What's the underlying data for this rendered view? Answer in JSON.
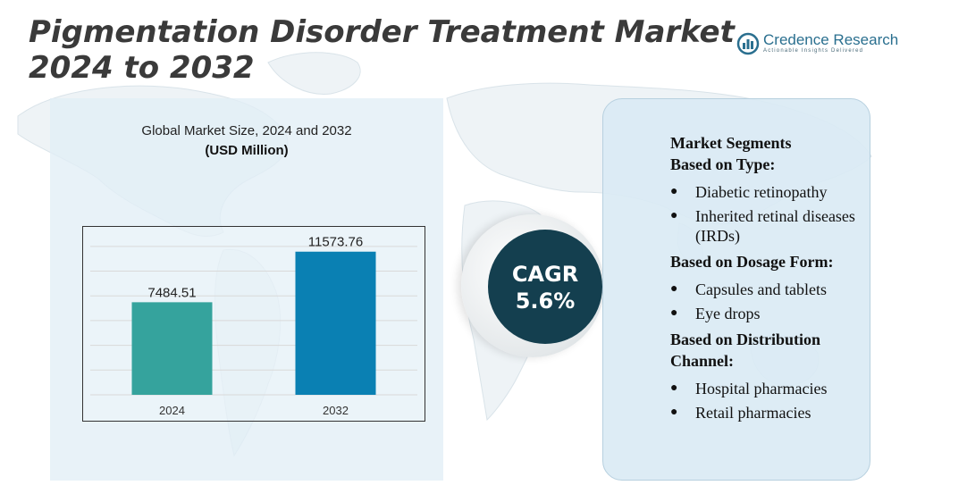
{
  "title": "Pigmentation Disorder Treatment Market 2024 to 2032",
  "brand": {
    "name": "Credence Research",
    "tagline": "Actionable Insights Delivered",
    "logo_icon": "credence-logo-icon"
  },
  "colors": {
    "bar_2024": "#35a39d",
    "bar_2032": "#0a80b3",
    "cagr_circle": "#143f4f",
    "title": "#3a3a3a"
  },
  "chart_data": {
    "type": "bar",
    "title": "Global Market Size, 2024 and 2032",
    "subtitle": "(USD Million)",
    "categories": [
      "2024",
      "2032"
    ],
    "values": [
      7484.51,
      11573.76
    ],
    "value_labels": [
      "7484.51",
      "11573.76"
    ],
    "ylim": [
      0,
      13000
    ],
    "grid": true,
    "xlabel": "",
    "ylabel": ""
  },
  "cagr": {
    "label": "CAGR",
    "value": "5.6%"
  },
  "segments": {
    "heading": "Market Segments",
    "groups": [
      {
        "title": "Based on Type:",
        "items": [
          "Diabetic retinopathy",
          "Inherited retinal diseases (IRDs)"
        ]
      },
      {
        "title": "Based on Dosage Form:",
        "items": [
          "Capsules and tablets",
          "Eye drops"
        ]
      },
      {
        "title": "Based on Distribution Channel:",
        "items": [
          "Hospital pharmacies",
          "Retail pharmacies"
        ]
      }
    ]
  }
}
